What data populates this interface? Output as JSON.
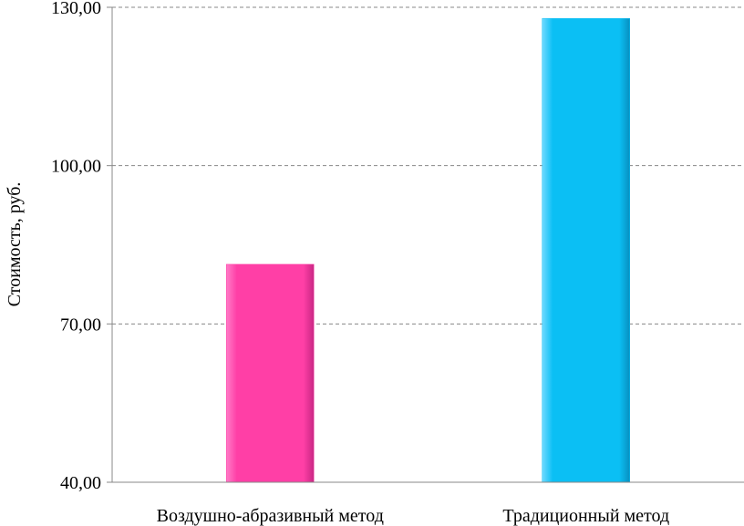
{
  "chart_data": {
    "type": "bar",
    "categories": [
      "Воздушно-абразивный метод",
      "Традиционный метод"
    ],
    "values": [
      81.3,
      127.9
    ],
    "ylabel": "Стоимость, руб.",
    "ylim": [
      40,
      130
    ],
    "yticks": [
      40,
      70,
      100,
      130
    ],
    "ytick_labels": [
      "40,00",
      "70,00",
      "100,00",
      "130,00"
    ],
    "grid": true,
    "legend": "none",
    "colors": [
      "#ff3fa6",
      "#0bbff4"
    ]
  }
}
